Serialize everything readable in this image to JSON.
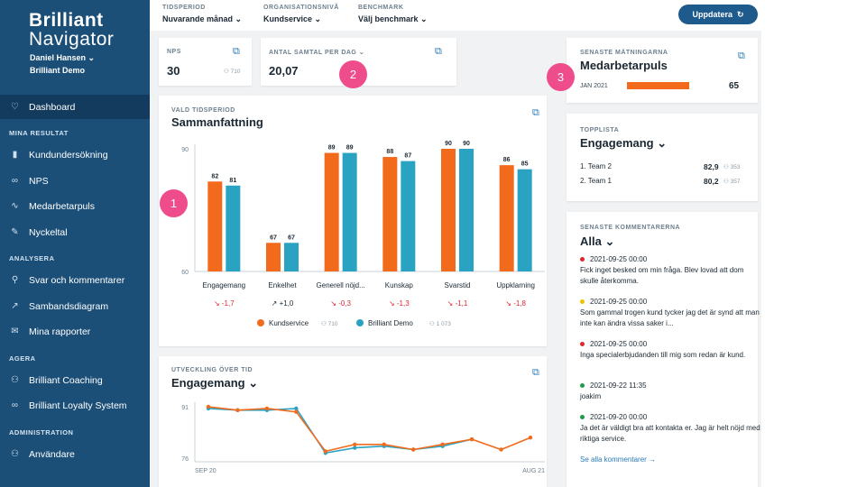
{
  "sidebar": {
    "logo_line1": "Brilliant",
    "logo_line2": "Navigator",
    "user": "Daniel Hansen",
    "org": "Brilliant Demo",
    "dashboard": "Dashboard",
    "sections": {
      "results": "MINA RESULTAT",
      "analysis": "ANALYSERA",
      "act": "AGERA",
      "admin": "ADMINISTRATION"
    },
    "items": {
      "customer": "Kundundersökning",
      "nps": "NPS",
      "pulse": "Medarbetarpuls",
      "kpi": "Nyckeltal",
      "answers": "Svar och kommentarer",
      "correlation": "Sambandsdiagram",
      "reports": "Mina rapporter",
      "coaching": "Brilliant Coaching",
      "loyalty": "Brilliant Loyalty System",
      "users": "Användare"
    }
  },
  "filters": {
    "period_label": "TIDSPERIOD",
    "period_value": "Nuvarande månad",
    "org_label": "ORGANISATIONSNIVÅ",
    "org_value": "Kundservice",
    "bench_label": "BENCHMARK",
    "bench_value": "Välj benchmark",
    "update": "Uppdatera"
  },
  "nps": {
    "label": "NPS",
    "value": "30",
    "count": "710"
  },
  "calls": {
    "label": "ANTAL SAMTAL PER DAG",
    "value": "20,07"
  },
  "summary": {
    "label": "VALD TIDSPERIOD",
    "title": "Sammanfattning"
  },
  "trend": {
    "label": "UTVECKLING ÖVER TID",
    "title": "Engagemang"
  },
  "latest": {
    "label": "SENASTE MÄTNINGARNA",
    "title": "Medarbetarpuls",
    "date": "JAN 2021",
    "value": "65",
    "fraction": 0.65
  },
  "toplist": {
    "label": "TOPPLISTA",
    "title": "Engagemang",
    "rows": [
      {
        "name": "1. Team 2",
        "value": "82,9",
        "count": "353"
      },
      {
        "name": "2. Team 1",
        "value": "80,2",
        "count": "357"
      }
    ]
  },
  "comments": {
    "label": "SENASTE KOMMENTARERNA",
    "filter": "Alla",
    "see_all": "Se alla kommentarer",
    "items": [
      {
        "date": "2021-09-25 00:00",
        "text": "Fick inget besked om min fråga. Blev lovad att dom skulle återkomma.",
        "color": "#e0262f"
      },
      {
        "date": "2021-09-25 00:00",
        "text": "Som gammal trogen kund tycker jag det är synd att man inte kan ändra vissa saker i...",
        "color": "#f2c000"
      },
      {
        "date": "2021-09-25 00:00",
        "text": "Inga specialerbjudanden till mig som redan är kund.",
        "color": "#e0262f"
      },
      {
        "date": "2021-09-22 11:35",
        "text": "joakim",
        "color": "#1f9a4b"
      },
      {
        "date": "2021-09-20 00:00",
        "text": "Ja det är väldigt bra att kontakta er. Jag är helt nöjd med riktiga service.",
        "color": "#1f9a4b"
      }
    ]
  },
  "callouts": [
    "1",
    "2",
    "3"
  ],
  "colors": {
    "orange": "#f26b1d",
    "teal": "#2aa3c2",
    "sidebar": "#1c4f78",
    "active": "#123b5d",
    "accent": "#ef4c8b"
  },
  "icons": {
    "dashboard": "heart-icon",
    "customer": "bar-icon",
    "nps": "link-icon",
    "pulse": "pulse-icon",
    "kpi": "pencil-icon",
    "answers": "search-icon",
    "correlation": "trend-icon",
    "reports": "mail-icon",
    "coaching": "people-icon",
    "loyalty": "link-icon",
    "users": "people-icon",
    "external": "external-link-icon",
    "update": "refresh-icon"
  },
  "chart_data": [
    {
      "type": "bar",
      "categories": [
        "Engagemang",
        "Enkelhet",
        "Generell nöjd...",
        "Kunskap",
        "Svarstid",
        "Uppklarning"
      ],
      "series": [
        {
          "name": "Kundservice",
          "values": [
            82,
            67,
            89,
            88,
            90,
            86
          ]
        },
        {
          "name": "Brilliant Demo",
          "values": [
            81,
            67,
            89,
            87,
            90,
            85
          ]
        }
      ],
      "diffs": [
        "-1,7",
        "+1,0",
        "-0,3",
        "-1,3",
        "-1,1",
        "-1,8"
      ],
      "diff_dirs": [
        "down",
        "up",
        "down",
        "down",
        "down",
        "down"
      ],
      "ylim": [
        60,
        90
      ],
      "yticks": [
        "90",
        "60"
      ],
      "legend_counts": [
        "710",
        "1 073"
      ],
      "legend": "bottom"
    },
    {
      "type": "line",
      "x_start": "SEP 20",
      "x_end": "AUG 21",
      "yticks": [
        "91",
        "76"
      ],
      "ylim": [
        76,
        91
      ],
      "series": [
        {
          "name": "Kundservice",
          "values": [
            91,
            90,
            90.5,
            89.5,
            78,
            80,
            80,
            78.5,
            80,
            81.5,
            78.5,
            82
          ]
        },
        {
          "name": "Brilliant Demo",
          "values": [
            90.5,
            90,
            90,
            90.5,
            77.5,
            79,
            79.5,
            78.5,
            79.5,
            81.5,
            null,
            null
          ]
        }
      ]
    }
  ]
}
